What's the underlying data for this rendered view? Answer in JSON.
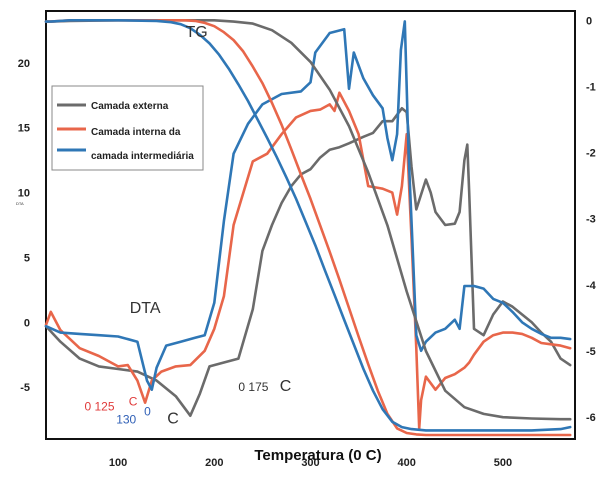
{
  "chart_data": {
    "type": "line",
    "xlabel": "Temperatura (0 C)",
    "ylabel": "DTA",
    "x_ticks": [
      "100",
      "200",
      "300",
      "400",
      "500"
    ],
    "y_ticks": [
      "-5",
      "0",
      "5",
      "10",
      "15",
      "20"
    ],
    "y2_ticks": [
      "0",
      "-1",
      "-2",
      "-3",
      "-4",
      "-5",
      "-6"
    ],
    "xlim": [
      25,
      575
    ],
    "ylim": [
      -9,
      24
    ],
    "y2lim": [
      -6.33,
      0.14
    ],
    "legend": {
      "placement": "upper-left",
      "entries": [
        "Camada externa",
        "Camada interna da",
        "camada intermediária"
      ]
    },
    "annotations": [
      {
        "text": "TG",
        "x": 170,
        "y": 22
      },
      {
        "text": "DTA",
        "x": 112,
        "y": 0.7
      },
      {
        "text": "0 175",
        "x": 225,
        "y": -5.3
      },
      {
        "text": "C",
        "x": 268,
        "y": -5.3
      },
      {
        "text": "0 125",
        "x": 65,
        "y": -6.8
      },
      {
        "text": "C",
        "x": 111,
        "y": -6.4
      },
      {
        "text": "130",
        "x": 98,
        "y": -7.8
      },
      {
        "text": "0",
        "x": 127,
        "y": -7.2
      },
      {
        "text": "C",
        "x": 151,
        "y": -7.8
      }
    ],
    "series": [
      {
        "name": "Camada externa",
        "color": "#6b6b6b",
        "curve": "DTA",
        "x": [
          25,
          40,
          60,
          80,
          100,
          120,
          140,
          160,
          175,
          185,
          195,
          210,
          225,
          240,
          250,
          260,
          270,
          280,
          290,
          300,
          310,
          320,
          330,
          340,
          355,
          365,
          375,
          385,
          395,
          400,
          405,
          410,
          420,
          425,
          430,
          440,
          450,
          455,
          460,
          463,
          465,
          470,
          480,
          490,
          500,
          510,
          520,
          530,
          540,
          550,
          560,
          570
        ],
        "y": [
          -0.3,
          -1.5,
          -2.8,
          -3.4,
          -3.6,
          -3.8,
          -4.5,
          -5.7,
          -7.2,
          -5.5,
          -3.4,
          -3.1,
          -2.8,
          1,
          5.5,
          7.5,
          9.2,
          10.5,
          11.4,
          11.8,
          12.7,
          13.3,
          13.5,
          13.8,
          14.3,
          14.6,
          15.5,
          15.5,
          16.5,
          16.2,
          12,
          8.7,
          11,
          10,
          8.5,
          7.5,
          7.6,
          8.5,
          12.5,
          13.7,
          10,
          -0.5,
          -1,
          0.6,
          1.6,
          1.2,
          0.6,
          0,
          -0.8,
          -1.5,
          -2.8,
          -3.3
        ]
      },
      {
        "name": "Camada interna da camada intermediária",
        "color": "#e8664a",
        "curve": "DTA",
        "x": [
          25,
          30,
          40,
          60,
          80,
          100,
          110,
          120,
          128,
          135,
          145,
          160,
          175,
          190,
          200,
          210,
          220,
          240,
          255,
          270,
          285,
          300,
          310,
          320,
          325,
          330,
          340,
          350,
          360,
          375,
          385,
          390,
          395,
          400,
          405,
          410,
          413,
          415,
          420,
          430,
          440,
          450,
          460,
          465,
          470,
          480,
          490,
          500,
          510,
          520,
          530,
          540,
          550,
          560,
          570
        ],
        "y": [
          -0.2,
          0.8,
          -0.6,
          -2,
          -2.6,
          -3.4,
          -3.3,
          -4.5,
          -6.2,
          -4.5,
          -3.8,
          -3.4,
          -3.3,
          -2.2,
          -0.5,
          2,
          7.5,
          12.4,
          13,
          14.5,
          15.8,
          16.3,
          16.4,
          16.8,
          16.3,
          17.7,
          16.3,
          14.5,
          10.5,
          10.3,
          10,
          8.3,
          10.5,
          14.5,
          6.5,
          -2,
          -8.2,
          -6,
          -4.2,
          -5.2,
          -4.3,
          -4,
          -3.5,
          -3.1,
          -2.5,
          -1.5,
          -1,
          -0.8,
          -0.8,
          -0.9,
          -1.2,
          -1.6,
          -1.7,
          -1.8,
          -2
        ]
      },
      {
        "name": "Camada interna da camada intermediária",
        "color": "#2f77b6",
        "curve": "DTA",
        "x": [
          25,
          40,
          60,
          80,
          100,
          120,
          130,
          135,
          140,
          150,
          165,
          180,
          190,
          200,
          210,
          220,
          235,
          250,
          270,
          290,
          300,
          305,
          320,
          335,
          340,
          345,
          355,
          365,
          375,
          380,
          385,
          390,
          394,
          398,
          402,
          406,
          410,
          415,
          420,
          430,
          440,
          450,
          455,
          460,
          470,
          480,
          490,
          500,
          510,
          520,
          530,
          540,
          550,
          560,
          570
        ],
        "y": [
          -0.3,
          -0.8,
          -0.9,
          -1,
          -1.1,
          -1.5,
          -4.5,
          -5.2,
          -3.5,
          -1.8,
          -1.5,
          -1.2,
          -1,
          1.5,
          7.8,
          13,
          15.3,
          16.8,
          17.6,
          17.8,
          18.5,
          20.8,
          22.3,
          22.6,
          18,
          20.8,
          18.8,
          17.5,
          16.5,
          14.2,
          12.5,
          14.5,
          21,
          23.2,
          13,
          6,
          -1,
          -2.2,
          -1.5,
          -0.8,
          -0.5,
          0.2,
          -0.5,
          2.8,
          2.8,
          2.6,
          1.8,
          1.5,
          0.8,
          0,
          -0.5,
          -0.9,
          -1.2,
          -1.2,
          -1.3
        ]
      },
      {
        "name": "Camada externa",
        "color": "#6b6b6b",
        "curve": "TG",
        "x": [
          25,
          30,
          50,
          100,
          150,
          200,
          220,
          240,
          260,
          280,
          300,
          320,
          340,
          360,
          380,
          400,
          420,
          440,
          460,
          480,
          500,
          530,
          560,
          570
        ],
        "y": [
          -0.02,
          -0.02,
          -0.01,
          0,
          0,
          0,
          -0.02,
          -0.05,
          -0.15,
          -0.34,
          -0.63,
          -1.05,
          -1.6,
          -2.3,
          -3.1,
          -4.1,
          -5.0,
          -5.6,
          -5.85,
          -5.95,
          -6.0,
          -6.02,
          -6.03,
          -6.03
        ]
      },
      {
        "name": "Camada interna da camada intermediária",
        "color": "#e8664a",
        "curve": "TG",
        "x": [
          25,
          30,
          50,
          100,
          150,
          170,
          180,
          190,
          200,
          210,
          220,
          230,
          240,
          250,
          260,
          270,
          280,
          290,
          300,
          310,
          320,
          330,
          340,
          350,
          360,
          370,
          380,
          390,
          400,
          410,
          420,
          440,
          460,
          480,
          500,
          530,
          560,
          570
        ],
        "y": [
          -0.02,
          -0.02,
          0,
          0,
          0,
          0,
          -0.01,
          -0.04,
          -0.09,
          -0.18,
          -0.3,
          -0.47,
          -0.7,
          -0.95,
          -1.25,
          -1.58,
          -1.95,
          -2.33,
          -2.7,
          -3.1,
          -3.5,
          -3.92,
          -4.35,
          -4.78,
          -5.2,
          -5.6,
          -5.95,
          -6.17,
          -6.24,
          -6.26,
          -6.27,
          -6.27,
          -6.27,
          -6.27,
          -6.27,
          -6.27,
          -6.27,
          -6.27
        ]
      },
      {
        "name": "Camada interna da camada intermediária",
        "color": "#2f77b6",
        "curve": "TG",
        "x": [
          25,
          30,
          50,
          100,
          140,
          155,
          165,
          175,
          185,
          195,
          205,
          215,
          225,
          235,
          245,
          255,
          265,
          275,
          285,
          295,
          305,
          315,
          325,
          335,
          345,
          355,
          365,
          375,
          385,
          395,
          405,
          420,
          440,
          460,
          480,
          500,
          530,
          560,
          570
        ],
        "y": [
          -0.02,
          -0.02,
          0,
          0,
          -0.01,
          -0.03,
          -0.06,
          -0.12,
          -0.22,
          -0.35,
          -0.52,
          -0.73,
          -0.97,
          -1.22,
          -1.5,
          -1.78,
          -2.07,
          -2.38,
          -2.7,
          -3.05,
          -3.4,
          -3.78,
          -4.15,
          -4.53,
          -4.9,
          -5.27,
          -5.6,
          -5.88,
          -6.07,
          -6.15,
          -6.18,
          -6.2,
          -6.2,
          -6.2,
          -6.2,
          -6.2,
          -6.2,
          -6.18,
          -6.15
        ]
      }
    ]
  }
}
